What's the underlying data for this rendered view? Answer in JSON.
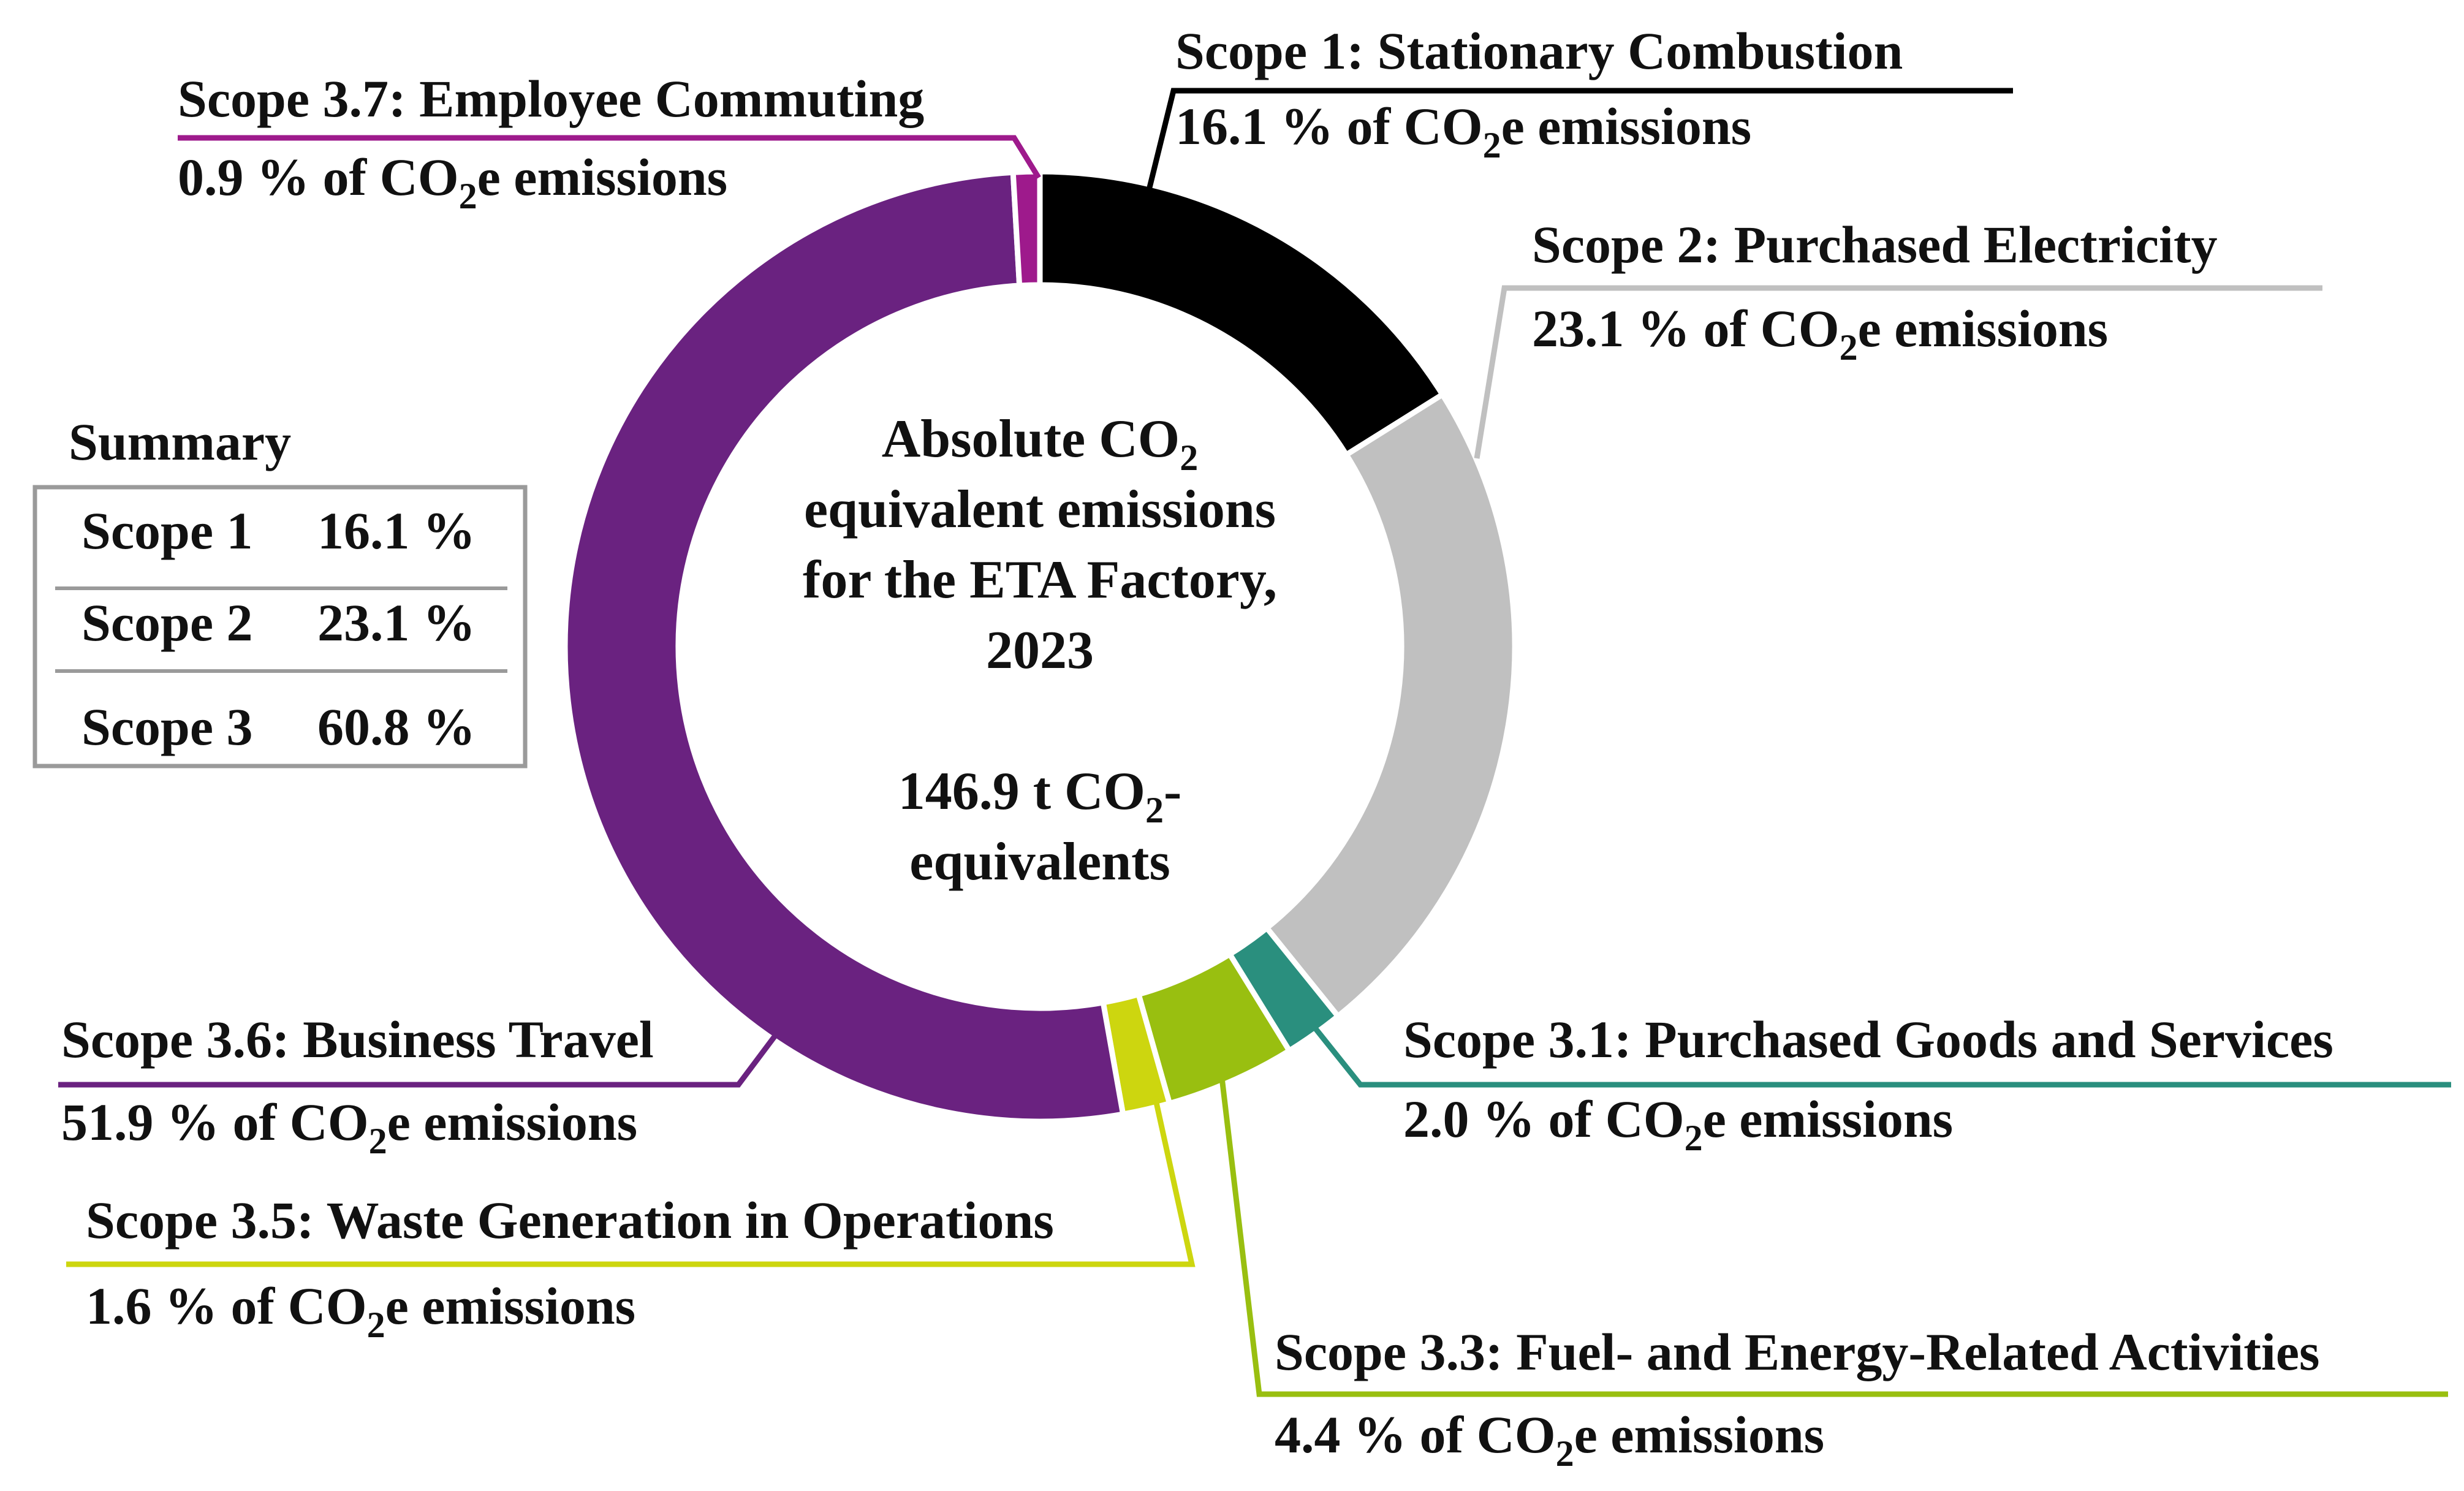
{
  "chart_data": {
    "type": "pie",
    "donut": true,
    "center_title": [
      "Absolute CO",
      "2",
      "equivalent emissions",
      "for the ETA Factory,",
      "2023"
    ],
    "center_total": [
      "146.9 t CO",
      "2",
      "-",
      "equivalents"
    ],
    "unit_suffix": "% of CO",
    "unit_subscript": "2",
    "unit_after": "e emissions",
    "slices": [
      {
        "name": "Scope 1: Stationary Combustion",
        "value": 16.1,
        "value_label": "16.1",
        "color": "#000000"
      },
      {
        "name": "Scope 2: Purchased Electricity",
        "value": 23.1,
        "value_label": "23.1",
        "color": "#c0c0c0"
      },
      {
        "name": "Scope 3.1: Purchased Goods and Services",
        "value": 2.0,
        "value_label": "2.0",
        "color": "#2a8f7e"
      },
      {
        "name": "Scope 3.3: Fuel- and Energy-Related Activities",
        "value": 4.4,
        "value_label": "4.4",
        "color": "#99bf10"
      },
      {
        "name": "Scope 3.5: Waste Generation in Operations",
        "value": 1.6,
        "value_label": "1.6",
        "color": "#cdd60f"
      },
      {
        "name": "Scope 3.6: Business Travel",
        "value": 51.9,
        "value_label": "51.9",
        "color": "#6a2280"
      },
      {
        "name": "Scope 3.7: Employee Commuting",
        "value": 0.9,
        "value_label": "0.9",
        "color": "#9e1a8c"
      }
    ]
  },
  "summary": {
    "title": "Summary",
    "rows": [
      {
        "scope": "Scope 1",
        "value": "16.1 %"
      },
      {
        "scope": "Scope 2",
        "value": "23.1 %"
      },
      {
        "scope": "Scope 3",
        "value": "60.8 %"
      }
    ]
  }
}
